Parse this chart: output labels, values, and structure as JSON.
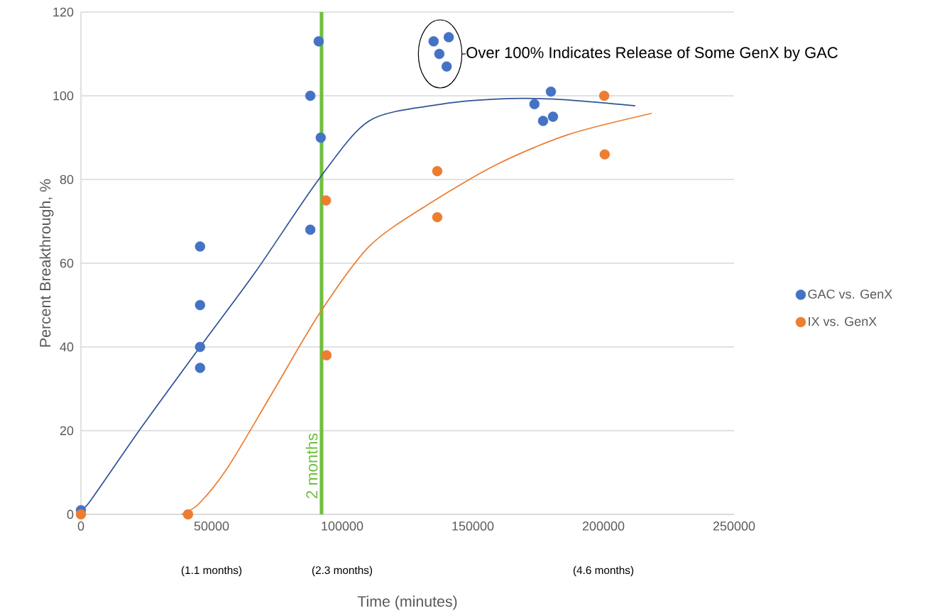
{
  "chart_data": {
    "type": "scatter",
    "xlabel": "Time (minutes)",
    "ylabel": "Percent Breakthrough, %",
    "xlim": [
      0,
      250000
    ],
    "ylim": [
      0,
      120
    ],
    "xticks": [
      0,
      50000,
      100000,
      150000,
      200000,
      250000
    ],
    "yticks": [
      0,
      20,
      40,
      60,
      80,
      100,
      120
    ],
    "grid": "y",
    "legend": "right",
    "series": [
      {
        "name": "GAC vs. GenX",
        "marker": "circle",
        "color": "#4472c4",
        "x": [
          0,
          45600,
          45600,
          45600,
          45600,
          87800,
          91000,
          91800,
          87800,
          135000,
          137200,
          140000,
          140800,
          173600,
          176900,
          179900,
          180700
        ],
        "values": [
          1,
          64,
          50,
          40,
          35,
          100,
          113,
          90,
          68,
          113,
          110,
          107,
          114,
          98,
          94,
          101,
          95
        ]
      },
      {
        "name": "IX vs. GenX",
        "marker": "circle",
        "color": "#ed7d31",
        "x": [
          0,
          41000,
          93800,
          94000,
          136400,
          136400,
          200300,
          200500
        ],
        "values": [
          0,
          0,
          75,
          38,
          82,
          71,
          100,
          86
        ]
      },
      {
        "type": "line",
        "color": "#2f5597",
        "x": [
          0,
          3800,
          23400,
          45600,
          66900,
          91000,
          110300,
          136000,
          159000,
          181000,
          212200
        ],
        "values": [
          1,
          3.4,
          21,
          40,
          58,
          80,
          94,
          97.8,
          99.2,
          99.2,
          97.6
        ]
      },
      {
        "type": "line",
        "color": "#ed7d31",
        "x": [
          38500,
          45100,
          56000,
          72300,
          91300,
          110300,
          132000,
          159200,
          186400,
          218500
        ],
        "values": [
          0,
          2.5,
          11,
          28,
          48,
          64,
          73.7,
          83.6,
          90.7,
          95.8
        ]
      }
    ],
    "ref_lines": [
      {
        "axis": "x",
        "value": 92100,
        "label": "2 months",
        "color": "#70bf41"
      }
    ],
    "annotations": [
      {
        "text": "Over 100% Indicates Release of Some GenX by GAC",
        "x": 137500,
        "y": 110
      },
      "(1.1 months)",
      "(2.3 months)",
      "(4.6 months)"
    ]
  }
}
